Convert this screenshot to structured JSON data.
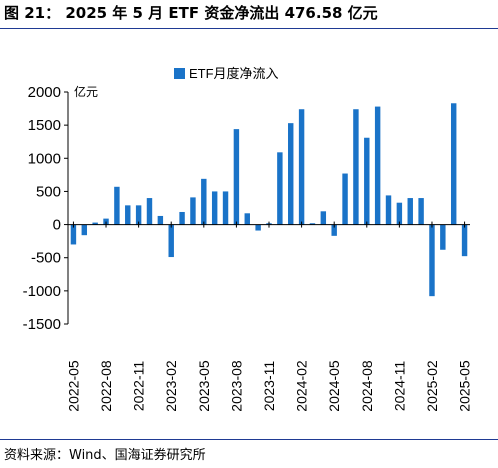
{
  "header": {
    "title": "图 21：  2025 年 5 月 ETF 资金净流出 476.58 亿元"
  },
  "footer": {
    "source": "资料来源：Wind、国海证券研究所"
  },
  "colors": {
    "bar": "#1a73c8",
    "rule": "#1f3a93",
    "axis": "#000000"
  },
  "chart_data": {
    "type": "bar",
    "title": "",
    "xlabel": "",
    "ylabel": "亿元",
    "ylim": [
      -1500,
      2000
    ],
    "yticks": [
      -1500,
      -1000,
      -500,
      0,
      500,
      1000,
      1500,
      2000
    ],
    "grid": false,
    "legend_position": "top-center",
    "x_tick_labels": [
      "2022-05",
      "2022-08",
      "2022-11",
      "2023-02",
      "2023-05",
      "2023-08",
      "2023-11",
      "2024-02",
      "2024-05",
      "2024-08",
      "2024-11",
      "2025-02",
      "2025-05"
    ],
    "categories": [
      "2022-05",
      "2022-06",
      "2022-07",
      "2022-08",
      "2022-09",
      "2022-10",
      "2022-11",
      "2022-12",
      "2023-01",
      "2023-02",
      "2023-03",
      "2023-04",
      "2023-05",
      "2023-06",
      "2023-07",
      "2023-08",
      "2023-09",
      "2023-10",
      "2023-11",
      "2023-12",
      "2024-01",
      "2024-02",
      "2024-03",
      "2024-04",
      "2024-05",
      "2024-06",
      "2024-07",
      "2024-08",
      "2024-09",
      "2024-10",
      "2024-11",
      "2024-12",
      "2025-01",
      "2025-02",
      "2025-03",
      "2025-04",
      "2025-05"
    ],
    "series": [
      {
        "name": "ETF月度净流入",
        "values": [
          -300,
          -160,
          30,
          90,
          570,
          290,
          290,
          400,
          130,
          -490,
          190,
          410,
          690,
          500,
          500,
          1440,
          170,
          -90,
          20,
          1090,
          1530,
          1740,
          20,
          200,
          -170,
          770,
          1740,
          1310,
          1780,
          440,
          330,
          400,
          400,
          -1080,
          -380,
          1830,
          -476.58
        ]
      }
    ]
  }
}
